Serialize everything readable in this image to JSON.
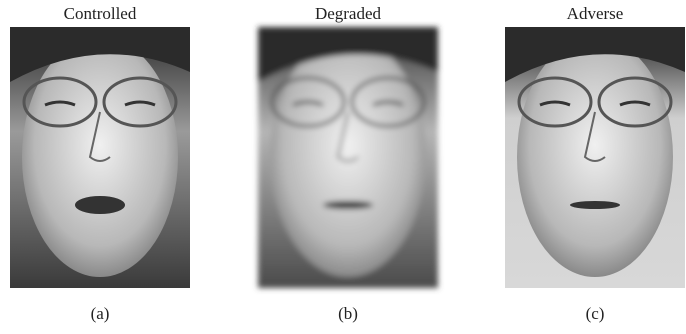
{
  "figure": {
    "panels": [
      {
        "title": "Controlled",
        "caption": "(a)"
      },
      {
        "title": "Degraded",
        "caption": "(b)"
      },
      {
        "title": "Adverse",
        "caption": "(c)"
      }
    ]
  }
}
